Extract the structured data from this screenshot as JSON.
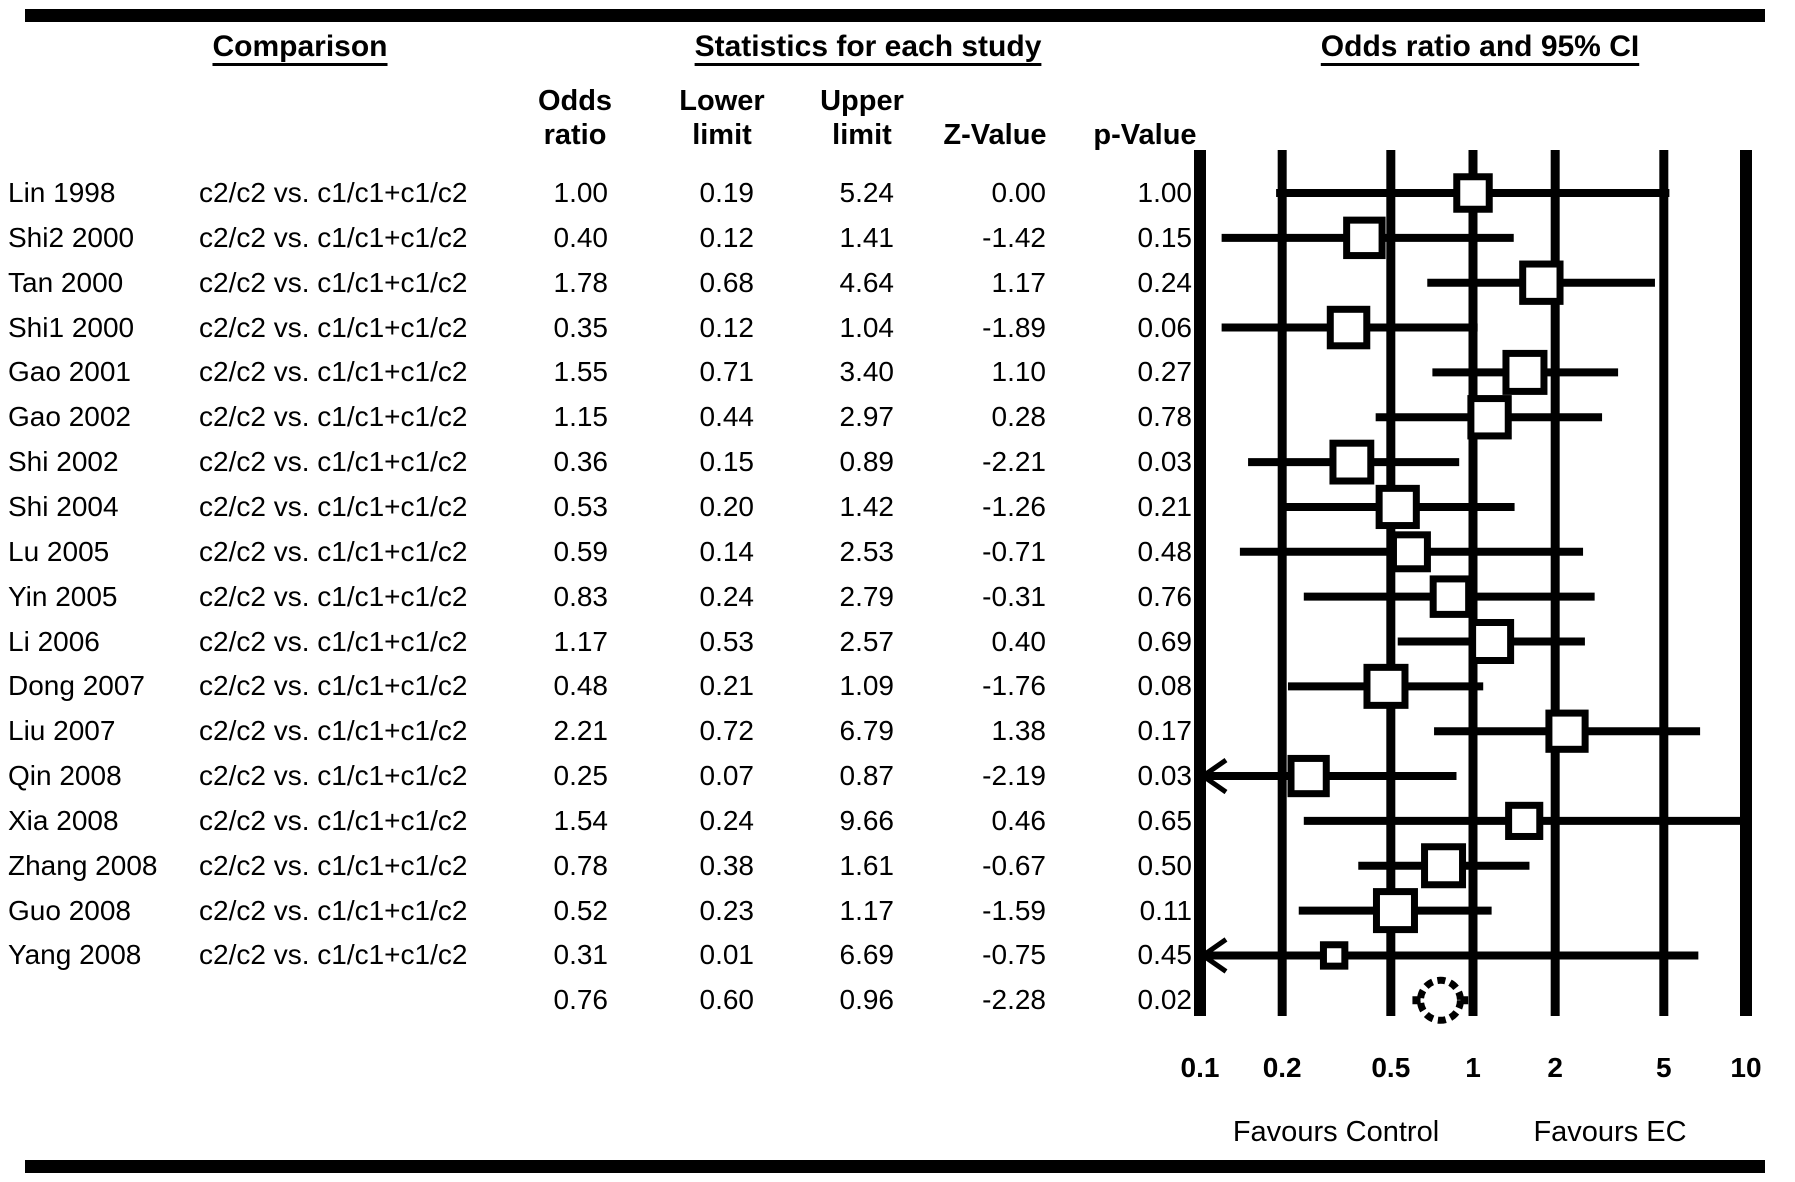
{
  "figure": {
    "section_headers": {
      "comparison": "Comparison",
      "statistics": "Statistics for each study",
      "plot": "Odds ratio and 95% CI"
    },
    "column_headers": [
      {
        "key": "or",
        "label": "Odds\nratio"
      },
      {
        "key": "lower",
        "label": "Lower\nlimit"
      },
      {
        "key": "upper",
        "label": "Upper\nlimit"
      },
      {
        "key": "z",
        "label": "Z-Value"
      },
      {
        "key": "p",
        "label": "p-Value"
      }
    ]
  },
  "chart_data": {
    "type": "forest",
    "effect_measure": "Odds ratio",
    "axis": {
      "scale": "log",
      "min": 0.1,
      "max": 10,
      "ticks": [
        0.1,
        0.2,
        0.5,
        1,
        2,
        5,
        10
      ],
      "tick_labels": [
        "0.1",
        "0.2",
        "0.5",
        "1",
        "2",
        "5",
        "10"
      ]
    },
    "studies": [
      {
        "name": "Lin 1998",
        "comparison": "c2/c2 vs. c1/c1+c1/c2",
        "odds_ratio": "1.00",
        "lower": "0.19",
        "upper": "5.24",
        "z": "0.00",
        "p": "1.00"
      },
      {
        "name": "Shi2 2000",
        "comparison": "c2/c2 vs. c1/c1+c1/c2",
        "odds_ratio": "0.40",
        "lower": "0.12",
        "upper": "1.41",
        "z": "-1.42",
        "p": "0.15"
      },
      {
        "name": "Tan 2000",
        "comparison": "c2/c2 vs. c1/c1+c1/c2",
        "odds_ratio": "1.78",
        "lower": "0.68",
        "upper": "4.64",
        "z": "1.17",
        "p": "0.24"
      },
      {
        "name": "Shi1 2000",
        "comparison": "c2/c2 vs. c1/c1+c1/c2",
        "odds_ratio": "0.35",
        "lower": "0.12",
        "upper": "1.04",
        "z": "-1.89",
        "p": "0.06"
      },
      {
        "name": "Gao 2001",
        "comparison": "c2/c2 vs. c1/c1+c1/c2",
        "odds_ratio": "1.55",
        "lower": "0.71",
        "upper": "3.40",
        "z": "1.10",
        "p": "0.27"
      },
      {
        "name": "Gao 2002",
        "comparison": "c2/c2 vs. c1/c1+c1/c2",
        "odds_ratio": "1.15",
        "lower": "0.44",
        "upper": "2.97",
        "z": "0.28",
        "p": "0.78"
      },
      {
        "name": "Shi 2002",
        "comparison": "c2/c2 vs. c1/c1+c1/c2",
        "odds_ratio": "0.36",
        "lower": "0.15",
        "upper": "0.89",
        "z": "-2.21",
        "p": "0.03"
      },
      {
        "name": "Shi 2004",
        "comparison": "c2/c2 vs. c1/c1+c1/c2",
        "odds_ratio": "0.53",
        "lower": "0.20",
        "upper": "1.42",
        "z": "-1.26",
        "p": "0.21"
      },
      {
        "name": "Lu 2005",
        "comparison": "c2/c2 vs. c1/c1+c1/c2",
        "odds_ratio": "0.59",
        "lower": "0.14",
        "upper": "2.53",
        "z": "-0.71",
        "p": "0.48"
      },
      {
        "name": "Yin 2005",
        "comparison": "c2/c2 vs. c1/c1+c1/c2",
        "odds_ratio": "0.83",
        "lower": "0.24",
        "upper": "2.79",
        "z": "-0.31",
        "p": "0.76"
      },
      {
        "name": "Li 2006",
        "comparison": "c2/c2 vs. c1/c1+c1/c2",
        "odds_ratio": "1.17",
        "lower": "0.53",
        "upper": "2.57",
        "z": "0.40",
        "p": "0.69"
      },
      {
        "name": "Dong 2007",
        "comparison": "c2/c2 vs. c1/c1+c1/c2",
        "odds_ratio": "0.48",
        "lower": "0.21",
        "upper": "1.09",
        "z": "-1.76",
        "p": "0.08"
      },
      {
        "name": "Liu 2007",
        "comparison": "c2/c2 vs. c1/c1+c1/c2",
        "odds_ratio": "2.21",
        "lower": "0.72",
        "upper": "6.79",
        "z": "1.38",
        "p": "0.17"
      },
      {
        "name": "Qin 2008",
        "comparison": "c2/c2 vs. c1/c1+c1/c2",
        "odds_ratio": "0.25",
        "lower": "0.07",
        "upper": "0.87",
        "z": "-2.19",
        "p": "0.03"
      },
      {
        "name": "Xia 2008",
        "comparison": "c2/c2 vs. c1/c1+c1/c2",
        "odds_ratio": "1.54",
        "lower": "0.24",
        "upper": "9.66",
        "z": "0.46",
        "p": "0.65"
      },
      {
        "name": "Zhang 2008",
        "comparison": "c2/c2 vs. c1/c1+c1/c2",
        "odds_ratio": "0.78",
        "lower": "0.38",
        "upper": "1.61",
        "z": "-0.67",
        "p": "0.50"
      },
      {
        "name": "Guo 2008",
        "comparison": "c2/c2 vs. c1/c1+c1/c2",
        "odds_ratio": "0.52",
        "lower": "0.23",
        "upper": "1.17",
        "z": "-1.59",
        "p": "0.11"
      },
      {
        "name": "Yang 2008",
        "comparison": "c2/c2 vs. c1/c1+c1/c2",
        "odds_ratio": "0.31",
        "lower": "0.01",
        "upper": "6.69",
        "z": "-0.75",
        "p": "0.45"
      }
    ],
    "summary": {
      "odds_ratio": "0.76",
      "lower": "0.60",
      "upper": "0.96",
      "z": "-2.28",
      "p": "0.02"
    },
    "footers": {
      "left": "Favours Control",
      "right": "Favours EC"
    }
  }
}
